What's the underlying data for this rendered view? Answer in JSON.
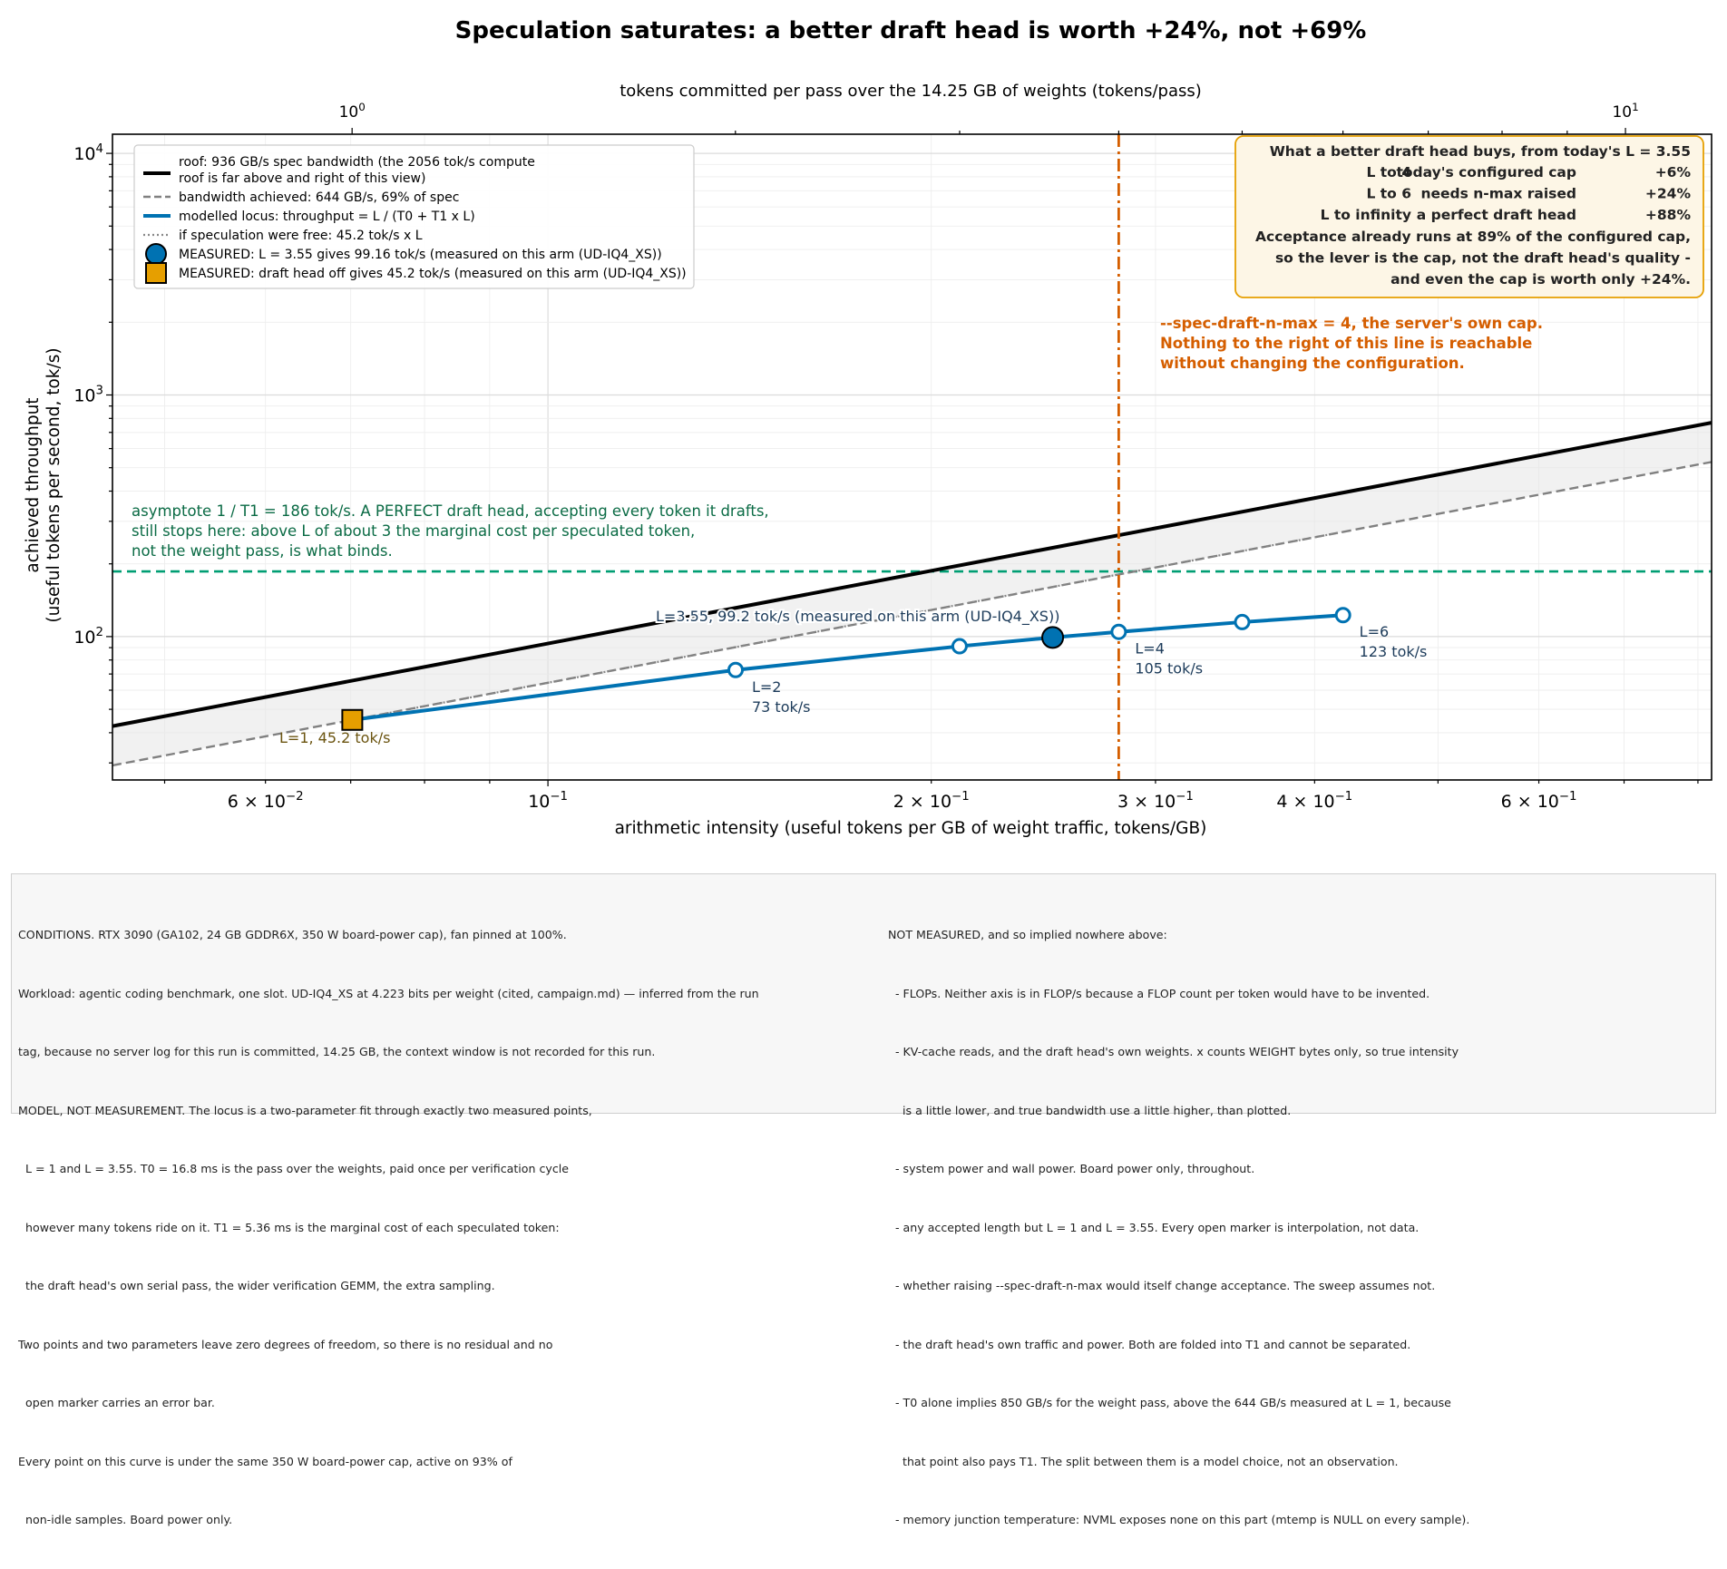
{
  "title": "Speculation saturates: a better draft head is worth +24%, not +69%",
  "top_axis_label": "tokens committed per pass over the 14.25 GB of weights (tokens/pass)",
  "top_ticks": [
    {
      "value": 1,
      "base": "10",
      "exp": "0"
    },
    {
      "value": 10,
      "base": "10",
      "exp": "1"
    }
  ],
  "colors": {
    "roof": "#000000",
    "bandwidth": "#808080",
    "locus": "#0072b2",
    "measured_l1": "#e69f00",
    "asymptote": "#009e73",
    "asymptote_text": "#0b6b45",
    "cap": "#d55e00",
    "point_label": "#1c3b5a",
    "l1_label": "#6b5410",
    "inset_bg": "#fdf6e6",
    "inset_border": "#e69f00"
  },
  "legend": [
    {
      "kind": "roof",
      "text": "roof: 936 GB/s spec bandwidth (the 2056 tok/s compute",
      "text2": "roof is far above and right of this view)"
    },
    {
      "kind": "bandwidth",
      "text": "bandwidth achieved: 644 GB/s, 69% of spec"
    },
    {
      "kind": "locus",
      "text": "modelled locus: throughput = L / (T0 + T1 x L)"
    },
    {
      "kind": "free",
      "text": "if speculation were free: 45.2 tok/s x L"
    },
    {
      "kind": "measured-circle",
      "text": "MEASURED: L = 3.55 gives 99.16 tok/s (measured on this arm (UD-IQ4_XS))"
    },
    {
      "kind": "measured-square",
      "text": "MEASURED: draft head off gives 45.2 tok/s (measured on this arm (UD-IQ4_XS))"
    }
  ],
  "inset": {
    "title": "What a better draft head buys, from today's L = 3.55",
    "rows": [
      {
        "label": "L to 4",
        "desc": "today's configured cap",
        "value": "+6%"
      },
      {
        "label": "L to 6",
        "desc": "needs n-max raised",
        "value": "+24%"
      },
      {
        "label": "L to infinity",
        "desc": "a perfect draft head",
        "value": "+88%"
      }
    ],
    "tail": [
      "Acceptance already runs at 89% of the configured cap,",
      "so the lever is the cap, not the draft head's quality -",
      "and even the cap is worth only +24%."
    ]
  },
  "cap_note": [
    "--spec-draft-n-max = 4, the server's own cap.",
    "Nothing to the right of this line is reachable",
    "without changing the configuration."
  ],
  "asymptote_note": [
    "asymptote 1 / T1 = 186 tok/s. A PERFECT draft head, accepting every token it drafts,",
    "still stops here: above L of about 3 the marginal cost per speculated token,",
    "not the weight pass, is what binds."
  ],
  "point_labels": {
    "measured": "L=3.55, 99.2 tok/s (measured on this arm (UD-IQ4_XS))",
    "l1": "L=1, 45.2 tok/s",
    "l2": [
      "L=2",
      "73 tok/s"
    ],
    "l4": [
      "L=4",
      "105 tok/s"
    ],
    "l6": [
      "L=6",
      "123 tok/s"
    ]
  },
  "chart_data": {
    "type": "line",
    "title": "Speculation saturates: a better draft head is worth +24%, not +69%",
    "xlabel": "arithmetic intensity  (useful tokens per GB of weight traffic, tokens/GB)",
    "ylabel": [
      "achieved throughput",
      "(useful tokens per second, tok/s)"
    ],
    "x_scale": "log",
    "y_scale": "log",
    "xlim": [
      0.0455,
      0.82
    ],
    "ylim": [
      25.5,
      12000
    ],
    "x_ticks": [
      {
        "value": 0.06,
        "mant": "6",
        "sep": " × ",
        "base": "10",
        "exp": "−2"
      },
      {
        "value": 0.1,
        "mant": "",
        "sep": "",
        "base": "10",
        "exp": "−1"
      },
      {
        "value": 0.2,
        "mant": "2",
        "sep": " × ",
        "base": "10",
        "exp": "−1"
      },
      {
        "value": 0.3,
        "mant": "3",
        "sep": " × ",
        "base": "10",
        "exp": "−1"
      },
      {
        "value": 0.4,
        "mant": "4",
        "sep": " × ",
        "base": "10",
        "exp": "−1"
      },
      {
        "value": 0.6,
        "mant": "6",
        "sep": " × ",
        "base": "10",
        "exp": "−1"
      }
    ],
    "y_ticks": [
      {
        "value": 100,
        "base": "10",
        "exp": "2"
      },
      {
        "value": 1000,
        "base": "10",
        "exp": "3"
      },
      {
        "value": 10000,
        "base": "10",
        "exp": "4"
      }
    ],
    "grid": true,
    "legend_position": "upper-left",
    "roof_bandwidth_gbs": 936,
    "achieved_bandwidth_gbs": 644,
    "asymptote_tok_s": 186,
    "cap_L": 4,
    "weights_gb": 14.25,
    "series": [
      {
        "name": "roof: 936 GB/s spec bandwidth",
        "kind": "roof",
        "x": [
          0.0455,
          0.82
        ],
        "y": [
          42.6,
          767.5
        ]
      },
      {
        "name": "bandwidth achieved: 644 GB/s, 69% of spec",
        "kind": "bandwidth",
        "x": [
          0.0455,
          0.82
        ],
        "y": [
          29.3,
          528.1
        ]
      },
      {
        "name": "modelled locus: throughput = L / (T0 + T1 x L)",
        "kind": "locus",
        "x": [
          0.0702,
          0.1404,
          0.2105,
          0.2491,
          0.2807,
          0.3509,
          0.4211
        ],
        "y": [
          45.2,
          72.7,
          91.2,
          99.2,
          104.6,
          114.8,
          122.7
        ],
        "L": [
          1,
          2,
          3,
          3.55,
          4,
          5,
          6
        ]
      },
      {
        "name": "if speculation were free: 45.2 tok/s x L",
        "kind": "free",
        "x": [
          0.0702,
          0.1404,
          0.2105,
          0.2491,
          0.2807,
          0.3509,
          0.4211
        ],
        "y": [
          45.2,
          90.4,
          135.6,
          160.5,
          180.8,
          226.0,
          271.2
        ]
      },
      {
        "name": "MEASURED: L = 3.55 gives 99.16 tok/s",
        "kind": "measured-circle",
        "x": [
          0.2491
        ],
        "y": [
          99.16
        ]
      },
      {
        "name": "MEASURED: draft head off gives 45.2 tok/s",
        "kind": "measured-square",
        "x": [
          0.0702
        ],
        "y": [
          45.2
        ]
      }
    ]
  },
  "notes": {
    "left": [
      "CONDITIONS. RTX 3090 (GA102, 24 GB GDDR6X, 350 W board-power cap), fan pinned at 100%.",
      "Workload: agentic coding benchmark, one slot. UD-IQ4_XS at 4.223 bits per weight (cited, campaign.md) — inferred from the run",
      "tag, because no server log for this run is committed, 14.25 GB, the context window is not recorded for this run.",
      "MODEL, NOT MEASUREMENT. The locus is a two-parameter fit through exactly two measured points,",
      "  L = 1 and L = 3.55. T0 = 16.8 ms is the pass over the weights, paid once per verification cycle",
      "  however many tokens ride on it. T1 = 5.36 ms is the marginal cost of each speculated token:",
      "  the draft head's own serial pass, the wider verification GEMM, the extra sampling.",
      "Two points and two parameters leave zero degrees of freedom, so there is no residual and no",
      "  open marker carries an error bar.",
      "Every point on this curve is under the same 350 W board-power cap, active on 93% of",
      "  non-idle samples. Board power only."
    ],
    "right": [
      "NOT MEASURED, and so implied nowhere above:",
      "  - FLOPs. Neither axis is in FLOP/s because a FLOP count per token would have to be invented.",
      "  - KV-cache reads, and the draft head's own weights. x counts WEIGHT bytes only, so true intensity",
      "    is a little lower, and true bandwidth use a little higher, than plotted.",
      "  - system power and wall power. Board power only, throughout.",
      "  - any accepted length but L = 1 and L = 3.55. Every open marker is interpolation, not data.",
      "  - whether raising --spec-draft-n-max would itself change acceptance. The sweep assumes not.",
      "  - the draft head's own traffic and power. Both are folded into T1 and cannot be separated.",
      "  - T0 alone implies 850 GB/s for the weight pass, above the 644 GB/s measured at L = 1, because",
      "    that point also pays T1. The split between them is a model choice, not an observation.",
      "  - memory junction temperature: NVML exposes none on this part (mtemp is NULL on every sample)."
    ]
  }
}
